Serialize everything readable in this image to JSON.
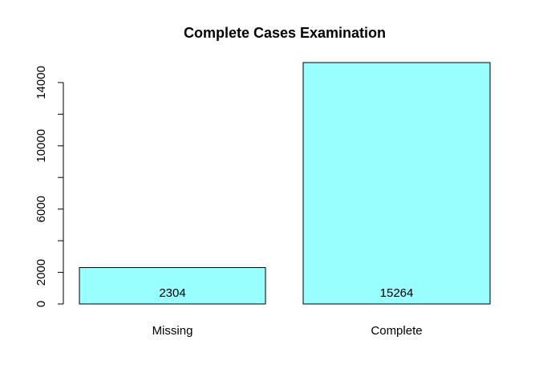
{
  "chart_data": {
    "type": "bar",
    "title": "Complete Cases Examination",
    "xlabel": "",
    "ylabel": "",
    "categories": [
      "Missing",
      "Complete"
    ],
    "values": [
      2304,
      15264
    ],
    "data_labels": [
      "2304",
      "15264"
    ],
    "yticks": [
      0,
      2000,
      6000,
      10000,
      14000
    ],
    "ytick_labels": [
      "0",
      "2000",
      "6000",
      "10000",
      "14000"
    ],
    "minor_yticks": [
      4000,
      8000,
      12000
    ],
    "ylim": [
      0,
      15264
    ],
    "bar_color": "#99ffff",
    "bar_edge_color": "#000000",
    "grid": false,
    "legend": "none"
  }
}
